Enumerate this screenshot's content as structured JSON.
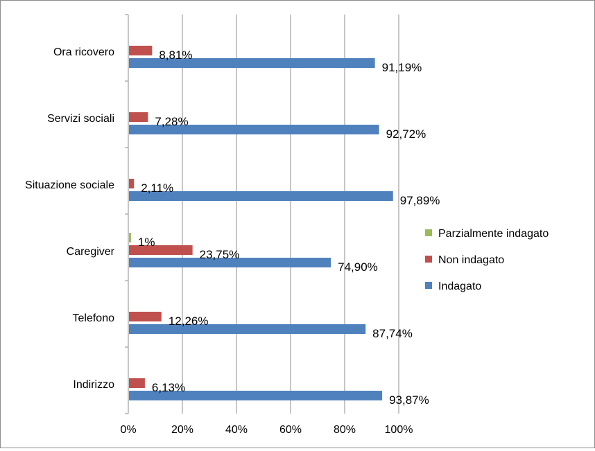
{
  "chart_data": {
    "type": "bar",
    "orientation": "horizontal",
    "categories": [
      "Indirizzo",
      "Telefono",
      "Caregiver",
      "Situazione sociale",
      "Servizi sociali",
      "Ora ricovero"
    ],
    "series": [
      {
        "name": "Indagato",
        "color": "#4F81BD",
        "values": [
          93.87,
          87.74,
          74.9,
          97.89,
          92.72,
          91.19
        ],
        "labels": [
          "93,87%",
          "87,74%",
          "74,90%",
          "97,89%",
          "92,72%",
          "91,19%"
        ]
      },
      {
        "name": "Non indagato",
        "color": "#C0504D",
        "values": [
          6.13,
          12.26,
          23.75,
          2.11,
          7.28,
          8.81
        ],
        "labels": [
          "6,13%",
          "12,26%",
          "23,75%",
          "2,11%",
          "7,28%",
          "8,81%"
        ]
      },
      {
        "name": "Parzialmente indagato",
        "color": "#9BBB59",
        "values": [
          null,
          null,
          1,
          null,
          null,
          null
        ],
        "labels": [
          null,
          null,
          "1%",
          null,
          null,
          null
        ]
      }
    ],
    "xlim": [
      0,
      100
    ],
    "xticks": [
      "0%",
      "20%",
      "40%",
      "60%",
      "80%",
      "100%"
    ],
    "grid": true,
    "legend_position": "right"
  }
}
